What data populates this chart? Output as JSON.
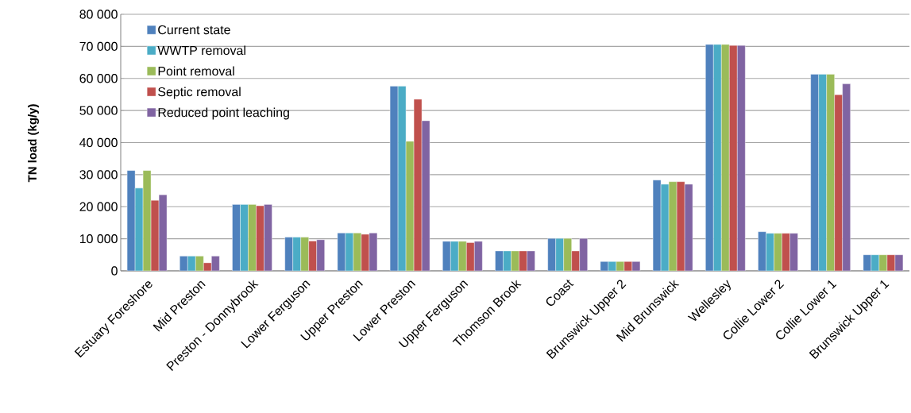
{
  "chart_data": {
    "type": "bar",
    "ylabel": "TN load  (kg/y)",
    "categories": [
      "Estuary Foreshore",
      "Mid Preston",
      "Preston - Donnybrook",
      "Lower Ferguson",
      "Upper Preston",
      "Lower Preston",
      "Upper Ferguson",
      "Thomson Brook",
      "Coast",
      "Brunswick Upper 2",
      "Mid Brunswick",
      "Wellesley",
      "Collie Lower 2",
      "Collie Lower 1",
      "Brunswick Upper 1"
    ],
    "series": [
      {
        "name": "Current state",
        "color": "#4f81bd",
        "values": [
          31300,
          4600,
          20700,
          10500,
          11800,
          57600,
          9200,
          6200,
          10100,
          2900,
          28300,
          70600,
          12200,
          61300,
          5000
        ]
      },
      {
        "name": "WWTP removal",
        "color": "#4bacc6",
        "values": [
          25800,
          4600,
          20700,
          10500,
          11800,
          57600,
          9200,
          6200,
          10100,
          2900,
          27000,
          70600,
          11700,
          61300,
          5000
        ]
      },
      {
        "name": "Point removal",
        "color": "#9bbb59",
        "values": [
          31300,
          4600,
          20700,
          10500,
          11800,
          40400,
          9200,
          6200,
          10100,
          2900,
          27800,
          70600,
          11700,
          61300,
          5000
        ]
      },
      {
        "name": "Septic removal",
        "color": "#c0504d",
        "values": [
          22000,
          2500,
          20300,
          9300,
          11400,
          53500,
          8800,
          6200,
          6200,
          2900,
          27800,
          70300,
          11700,
          54900,
          5000
        ]
      },
      {
        "name": "Reduced point leaching",
        "color": "#8064a2",
        "values": [
          23700,
          4600,
          20700,
          9700,
          11800,
          46800,
          9200,
          6200,
          10100,
          2900,
          27000,
          70300,
          11700,
          58300,
          5000
        ]
      }
    ],
    "ylim": [
      0,
      80000
    ],
    "yticks": [
      0,
      {
        "value": 10000,
        "label": "10 000"
      },
      {
        "value": 20000,
        "label": "20 000"
      },
      {
        "value": 30000,
        "label": "30 000"
      },
      {
        "value": 40000,
        "label": "40 000"
      },
      {
        "value": 50000,
        "label": "50 000"
      },
      {
        "value": 60000,
        "label": "60 000"
      },
      {
        "value": 70000,
        "label": "70 000"
      },
      {
        "value": 80000,
        "label": "80 000"
      }
    ],
    "grid": "y",
    "legend": "top left"
  }
}
